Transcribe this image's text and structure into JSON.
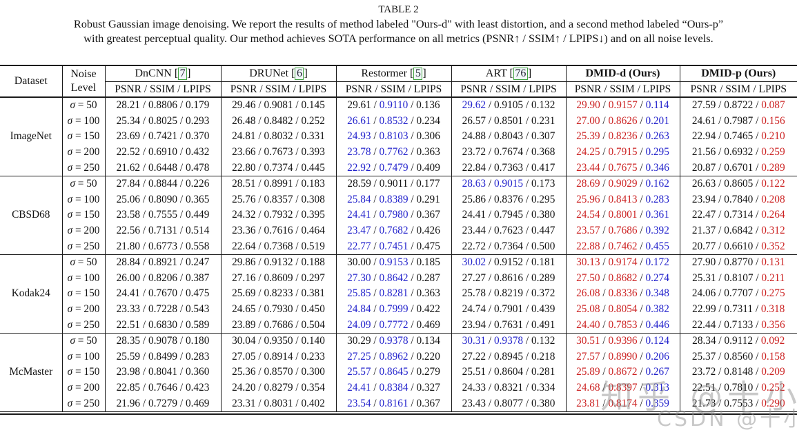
{
  "page": {
    "title": "TABLE 2",
    "caption_line1": "Robust Gaussian image denoising. We report the results of method labeled \"Ours-d\" with least distortion, and a second method labeled “Ours-p”",
    "caption_line2": "with greatest perceptual quality. Our method achieves SOTA performance on all metrics (PSNR↑ / SSIM↑ / LPIPS↓) and on all noise levels."
  },
  "colors": {
    "best": "#cc2222",
    "second_best": "#2222cc",
    "text": "#131313",
    "cite_box_border": "#41a341"
  },
  "table": {
    "header": {
      "dataset": "Dataset",
      "noise_line1": "Noise",
      "noise_line2": "Level",
      "metrics_label": "PSNR / SSIM / LPIPS"
    },
    "methods": [
      {
        "name": "DnCNN",
        "cite": "7",
        "bold": false
      },
      {
        "name": "DRUNet",
        "cite": "6",
        "bold": false
      },
      {
        "name": "Restormer",
        "cite": "5",
        "bold": false
      },
      {
        "name": "ART",
        "cite": "76",
        "bold": false
      },
      {
        "name": "DMID-d (Ours)",
        "cite": null,
        "bold": true
      },
      {
        "name": "DMID-p (Ours)",
        "cite": null,
        "bold": true
      }
    ],
    "blocks": [
      {
        "dataset": "ImageNet",
        "rows": [
          {
            "noise": "σ = 50",
            "cells": [
              [
                "28.21",
                "0.8806",
                "0.179",
                "kkk"
              ],
              [
                "29.46",
                "0.9081",
                "0.145",
                "kkk"
              ],
              [
                "29.61",
                "0.9110",
                "0.136",
                "kbk"
              ],
              [
                "29.62",
                "0.9105",
                "0.132",
                "bkk"
              ],
              [
                "29.90",
                "0.9157",
                "0.114",
                "rrb"
              ],
              [
                "27.59",
                "0.8722",
                "0.087",
                "kkr"
              ]
            ]
          },
          {
            "noise": "σ = 100",
            "cells": [
              [
                "25.34",
                "0.8025",
                "0.293",
                "kkk"
              ],
              [
                "26.48",
                "0.8482",
                "0.252",
                "kkk"
              ],
              [
                "26.61",
                "0.8532",
                "0.234",
                "bbk"
              ],
              [
                "26.57",
                "0.8501",
                "0.231",
                "kkk"
              ],
              [
                "27.00",
                "0.8626",
                "0.201",
                "rrb"
              ],
              [
                "24.61",
                "0.7987",
                "0.156",
                "kkr"
              ]
            ]
          },
          {
            "noise": "σ = 150",
            "cells": [
              [
                "23.69",
                "0.7421",
                "0.370",
                "kkk"
              ],
              [
                "24.81",
                "0.8032",
                "0.331",
                "kkk"
              ],
              [
                "24.93",
                "0.8103",
                "0.306",
                "bbk"
              ],
              [
                "24.88",
                "0.8043",
                "0.307",
                "kkk"
              ],
              [
                "25.39",
                "0.8236",
                "0.263",
                "rrb"
              ],
              [
                "22.94",
                "0.7465",
                "0.210",
                "kkr"
              ]
            ]
          },
          {
            "noise": "σ = 200",
            "cells": [
              [
                "22.52",
                "0.6910",
                "0.432",
                "kkk"
              ],
              [
                "23.66",
                "0.7673",
                "0.393",
                "kkk"
              ],
              [
                "23.78",
                "0.7762",
                "0.363",
                "bbk"
              ],
              [
                "23.72",
                "0.7674",
                "0.368",
                "kkk"
              ],
              [
                "24.25",
                "0.7915",
                "0.295",
                "rrb"
              ],
              [
                "21.56",
                "0.6932",
                "0.259",
                "kkr"
              ]
            ]
          },
          {
            "noise": "σ = 250",
            "cells": [
              [
                "21.62",
                "0.6448",
                "0.478",
                "kkk"
              ],
              [
                "22.80",
                "0.7374",
                "0.445",
                "kkk"
              ],
              [
                "22.92",
                "0.7479",
                "0.409",
                "bbk"
              ],
              [
                "22.84",
                "0.7363",
                "0.417",
                "kkk"
              ],
              [
                "23.44",
                "0.7675",
                "0.346",
                "rrb"
              ],
              [
                "20.87",
                "0.6701",
                "0.289",
                "kkr"
              ]
            ]
          }
        ]
      },
      {
        "dataset": "CBSD68",
        "rows": [
          {
            "noise": "σ = 50",
            "cells": [
              [
                "27.84",
                "0.8844",
                "0.226",
                "kkk"
              ],
              [
                "28.51",
                "0.8991",
                "0.183",
                "kkk"
              ],
              [
                "28.59",
                "0.9011",
                "0.177",
                "kkk"
              ],
              [
                "28.63",
                "0.9015",
                "0.173",
                "bbk"
              ],
              [
                "28.69",
                "0.9029",
                "0.162",
                "rrb"
              ],
              [
                "26.63",
                "0.8605",
                "0.122",
                "kkr"
              ]
            ]
          },
          {
            "noise": "σ = 100",
            "cells": [
              [
                "25.06",
                "0.8090",
                "0.365",
                "kkk"
              ],
              [
                "25.76",
                "0.8357",
                "0.308",
                "kkk"
              ],
              [
                "25.84",
                "0.8389",
                "0.291",
                "bbk"
              ],
              [
                "25.86",
                "0.8376",
                "0.295",
                "kkk"
              ],
              [
                "25.96",
                "0.8413",
                "0.283",
                "rrb"
              ],
              [
                "23.94",
                "0.7840",
                "0.208",
                "kkr"
              ]
            ]
          },
          {
            "noise": "σ = 150",
            "cells": [
              [
                "23.58",
                "0.7555",
                "0.449",
                "kkk"
              ],
              [
                "24.32",
                "0.7932",
                "0.395",
                "kkk"
              ],
              [
                "24.41",
                "0.7980",
                "0.367",
                "bbk"
              ],
              [
                "24.41",
                "0.7945",
                "0.380",
                "kkk"
              ],
              [
                "24.54",
                "0.8001",
                "0.361",
                "rrb"
              ],
              [
                "22.47",
                "0.7314",
                "0.264",
                "kkr"
              ]
            ]
          },
          {
            "noise": "σ = 200",
            "cells": [
              [
                "22.56",
                "0.7131",
                "0.514",
                "kkk"
              ],
              [
                "23.36",
                "0.7616",
                "0.464",
                "kkk"
              ],
              [
                "23.47",
                "0.7682",
                "0.426",
                "bbk"
              ],
              [
                "23.44",
                "0.7623",
                "0.447",
                "kkk"
              ],
              [
                "23.57",
                "0.7686",
                "0.392",
                "rrb"
              ],
              [
                "21.37",
                "0.6842",
                "0.312",
                "kkr"
              ]
            ]
          },
          {
            "noise": "σ = 250",
            "cells": [
              [
                "21.80",
                "0.6773",
                "0.558",
                "kkk"
              ],
              [
                "22.64",
                "0.7368",
                "0.519",
                "kkk"
              ],
              [
                "22.77",
                "0.7451",
                "0.475",
                "bbk"
              ],
              [
                "22.72",
                "0.7364",
                "0.500",
                "kkk"
              ],
              [
                "22.88",
                "0.7462",
                "0.455",
                "rrb"
              ],
              [
                "20.77",
                "0.6610",
                "0.352",
                "kkr"
              ]
            ]
          }
        ]
      },
      {
        "dataset": "Kodak24",
        "rows": [
          {
            "noise": "σ = 50",
            "cells": [
              [
                "28.84",
                "0.8921",
                "0.247",
                "kkk"
              ],
              [
                "29.86",
                "0.9132",
                "0.188",
                "kkk"
              ],
              [
                "30.00",
                "0.9153",
                "0.185",
                "kbk"
              ],
              [
                "30.02",
                "0.9152",
                "0.181",
                "bkk"
              ],
              [
                "30.13",
                "0.9174",
                "0.172",
                "rrb"
              ],
              [
                "27.90",
                "0.8770",
                "0.131",
                "kkr"
              ]
            ]
          },
          {
            "noise": "σ = 100",
            "cells": [
              [
                "26.00",
                "0.8206",
                "0.387",
                "kkk"
              ],
              [
                "27.16",
                "0.8609",
                "0.297",
                "kkk"
              ],
              [
                "27.30",
                "0.8642",
                "0.287",
                "bbk"
              ],
              [
                "27.27",
                "0.8616",
                "0.289",
                "kkk"
              ],
              [
                "27.50",
                "0.8682",
                "0.274",
                "rrb"
              ],
              [
                "25.31",
                "0.8107",
                "0.211",
                "kkr"
              ]
            ]
          },
          {
            "noise": "σ = 150",
            "cells": [
              [
                "24.41",
                "0.7670",
                "0.475",
                "kkk"
              ],
              [
                "25.69",
                "0.8233",
                "0.381",
                "kkk"
              ],
              [
                "25.85",
                "0.8281",
                "0.363",
                "bbk"
              ],
              [
                "25.78",
                "0.8219",
                "0.372",
                "kkk"
              ],
              [
                "26.08",
                "0.8336",
                "0.348",
                "rrb"
              ],
              [
                "24.06",
                "0.7707",
                "0.275",
                "kkr"
              ]
            ]
          },
          {
            "noise": "σ = 200",
            "cells": [
              [
                "23.33",
                "0.7228",
                "0.543",
                "kkk"
              ],
              [
                "24.65",
                "0.7930",
                "0.450",
                "kkk"
              ],
              [
                "24.84",
                "0.7999",
                "0.422",
                "bbk"
              ],
              [
                "24.74",
                "0.7901",
                "0.439",
                "kkk"
              ],
              [
                "25.08",
                "0.8054",
                "0.382",
                "rrb"
              ],
              [
                "22.99",
                "0.7311",
                "0.318",
                "kkr"
              ]
            ]
          },
          {
            "noise": "σ = 250",
            "cells": [
              [
                "22.51",
                "0.6830",
                "0.589",
                "kkk"
              ],
              [
                "23.89",
                "0.7686",
                "0.504",
                "kkk"
              ],
              [
                "24.09",
                "0.7772",
                "0.469",
                "bbk"
              ],
              [
                "23.94",
                "0.7631",
                "0.491",
                "kkk"
              ],
              [
                "24.40",
                "0.7853",
                "0.446",
                "rrb"
              ],
              [
                "22.44",
                "0.7133",
                "0.356",
                "kkr"
              ]
            ]
          }
        ]
      },
      {
        "dataset": "McMaster",
        "rows": [
          {
            "noise": "σ = 50",
            "cells": [
              [
                "28.35",
                "0.9078",
                "0.180",
                "kkk"
              ],
              [
                "30.04",
                "0.9350",
                "0.140",
                "kkk"
              ],
              [
                "30.29",
                "0.9378",
                "0.134",
                "kbk"
              ],
              [
                "30.31",
                "0.9378",
                "0.132",
                "bbk"
              ],
              [
                "30.51",
                "0.9396",
                "0.124",
                "rrb"
              ],
              [
                "28.34",
                "0.9112",
                "0.092",
                "kkr"
              ]
            ]
          },
          {
            "noise": "σ = 100",
            "cells": [
              [
                "25.59",
                "0.8499",
                "0.283",
                "kkk"
              ],
              [
                "27.05",
                "0.8914",
                "0.233",
                "kkk"
              ],
              [
                "27.25",
                "0.8962",
                "0.220",
                "bbk"
              ],
              [
                "27.22",
                "0.8945",
                "0.218",
                "kkk"
              ],
              [
                "27.57",
                "0.8990",
                "0.206",
                "rrb"
              ],
              [
                "25.37",
                "0.8560",
                "0.158",
                "kkr"
              ]
            ]
          },
          {
            "noise": "σ = 150",
            "cells": [
              [
                "23.98",
                "0.8041",
                "0.360",
                "kkk"
              ],
              [
                "25.36",
                "0.8570",
                "0.300",
                "kkk"
              ],
              [
                "25.57",
                "0.8645",
                "0.279",
                "bbk"
              ],
              [
                "25.51",
                "0.8604",
                "0.281",
                "kkk"
              ],
              [
                "25.89",
                "0.8672",
                "0.267",
                "rrb"
              ],
              [
                "23.72",
                "0.8148",
                "0.209",
                "kkr"
              ]
            ]
          },
          {
            "noise": "σ = 200",
            "cells": [
              [
                "22.85",
                "0.7646",
                "0.423",
                "kkk"
              ],
              [
                "24.20",
                "0.8279",
                "0.354",
                "kkk"
              ],
              [
                "24.41",
                "0.8384",
                "0.327",
                "bbk"
              ],
              [
                "24.33",
                "0.8321",
                "0.334",
                "kkk"
              ],
              [
                "24.68",
                "0.8397",
                "0.313",
                "rrb"
              ],
              [
                "22.51",
                "0.7810",
                "0.252",
                "kkr"
              ]
            ]
          },
          {
            "noise": "σ = 250",
            "cells": [
              [
                "21.96",
                "0.7279",
                "0.469",
                "kkk"
              ],
              [
                "23.31",
                "0.8031",
                "0.402",
                "kkk"
              ],
              [
                "23.54",
                "0.8161",
                "0.367",
                "bbk"
              ],
              [
                "23.43",
                "0.8077",
                "0.380",
                "kkk"
              ],
              [
                "23.81",
                "0.8174",
                "0.359",
                "rrb"
              ],
              [
                "21.73",
                "0.7553",
                "0.290",
                "kkr"
              ]
            ]
          }
        ]
      }
    ]
  },
  "watermarks": [
    {
      "text": "知乎 @十小大"
    },
    {
      "text": "CSDN @十小大"
    }
  ]
}
